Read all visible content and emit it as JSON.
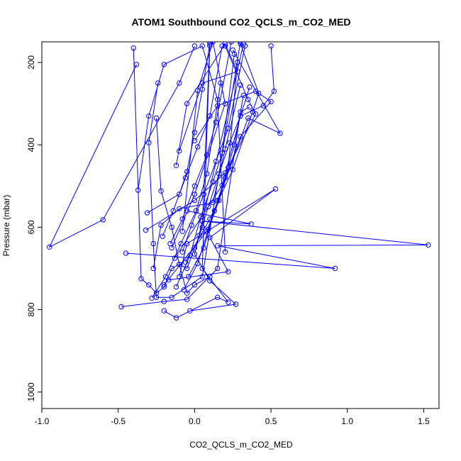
{
  "chart_data": {
    "type": "line",
    "title": "ATOM1 Southbound CO2_QCLS_m_CO2_MED",
    "xlabel": "CO2_QCLS_m_CO2_MED",
    "ylabel": "Pressure (mbar)",
    "xlim": [
      -1.0,
      1.6
    ],
    "ylim": [
      150,
      1040
    ],
    "y_reversed": true,
    "xticks": [
      -1.0,
      -0.5,
      0.0,
      0.5,
      1.0,
      1.5
    ],
    "xtick_labels": [
      "-1.0",
      "-0.5",
      "0.0",
      "0.5",
      "1.0",
      "1.5"
    ],
    "yticks": [
      200,
      400,
      600,
      800,
      1000
    ],
    "ytick_labels": [
      "200",
      "400",
      "600",
      "800",
      "1000"
    ],
    "grid": false,
    "series_color": "#0000ff",
    "marker": "open-circle",
    "series": [
      {
        "points": [
          [
            -0.4,
            165
          ],
          [
            -0.35,
            725
          ],
          [
            -0.3,
            740
          ],
          [
            -0.25,
            760
          ],
          [
            -0.2,
            745
          ],
          [
            -0.15,
            700
          ],
          [
            -0.1,
            690
          ],
          [
            -0.05,
            700
          ],
          [
            0.0,
            650
          ],
          [
            0.05,
            600
          ],
          [
            0.1,
            150
          ]
        ]
      },
      {
        "points": [
          [
            -0.38,
            205
          ],
          [
            -0.95,
            648
          ],
          [
            -0.6,
            582
          ],
          [
            -0.1,
            250
          ],
          [
            0.0,
            160
          ]
        ]
      },
      {
        "points": [
          [
            -0.24,
            250
          ],
          [
            -0.3,
            395
          ],
          [
            -0.27,
            640
          ],
          [
            -0.25,
            770
          ],
          [
            -0.15,
            770
          ],
          [
            0.05,
            720
          ],
          [
            0.3,
            150
          ]
        ]
      },
      {
        "points": [
          [
            -0.25,
            335
          ],
          [
            -0.22,
            512
          ],
          [
            -0.15,
            600
          ],
          [
            -0.1,
            690
          ],
          [
            -0.05,
            760
          ],
          [
            0.0,
            740
          ],
          [
            0.1,
            720
          ]
        ]
      },
      {
        "points": [
          [
            -0.48,
            793
          ],
          [
            -0.2,
            780
          ],
          [
            -0.05,
            775
          ],
          [
            0.15,
            700
          ],
          [
            0.3,
            320
          ],
          [
            0.36,
            308
          ]
        ]
      },
      {
        "points": [
          [
            -0.2,
            803
          ],
          [
            -0.12,
            820
          ],
          [
            0.15,
            770
          ],
          [
            0.22,
            782
          ],
          [
            0.05,
            700
          ],
          [
            0.1,
            160
          ]
        ]
      },
      {
        "points": [
          [
            -0.03,
            803
          ],
          [
            0.27,
            787
          ],
          [
            0.1,
            730
          ],
          [
            0.0,
            665
          ],
          [
            0.05,
            585
          ],
          [
            0.32,
            155
          ]
        ]
      },
      {
        "points": [
          [
            -0.45,
            663
          ],
          [
            0.92,
            700
          ],
          [
            0.15,
            645
          ],
          [
            1.53,
            643
          ],
          [
            0.05,
            585
          ],
          [
            0.37,
            592
          ],
          [
            -0.05,
            560
          ]
        ]
      },
      {
        "points": [
          [
            -0.17,
            728
          ],
          [
            0.22,
            708
          ],
          [
            0.1,
            625
          ],
          [
            0.53,
            507
          ],
          [
            -0.05,
            640
          ],
          [
            -0.1,
            720
          ]
        ]
      },
      {
        "points": [
          [
            -0.37,
            510
          ],
          [
            -0.3,
            330
          ],
          [
            -0.2,
            205
          ],
          [
            0.05,
            160
          ],
          [
            0.15,
            290
          ],
          [
            0.2,
            660
          ]
        ]
      },
      {
        "points": [
          [
            -0.31,
            565
          ],
          [
            -0.1,
            520
          ],
          [
            -0.05,
            465
          ],
          [
            0.0,
            370
          ],
          [
            0.05,
            265
          ],
          [
            0.1,
            155
          ]
        ]
      },
      {
        "points": [
          [
            -0.32,
            607
          ],
          [
            0.0,
            535
          ],
          [
            0.2,
            468
          ],
          [
            0.4,
            325
          ],
          [
            0.35,
            290
          ],
          [
            0.2,
            160
          ]
        ]
      },
      {
        "points": [
          [
            -0.13,
            675
          ],
          [
            0.18,
            498
          ],
          [
            0.3,
            330
          ],
          [
            0.45,
            305
          ],
          [
            0.52,
            270
          ],
          [
            0.5,
            160
          ]
        ]
      },
      {
        "points": [
          [
            -0.06,
            685
          ],
          [
            0.1,
            580
          ],
          [
            0.25,
            460
          ],
          [
            0.38,
            320
          ],
          [
            0.42,
            275
          ],
          [
            0.3,
            155
          ]
        ]
      },
      {
        "points": [
          [
            -0.2,
            740
          ],
          [
            0.08,
            610
          ],
          [
            0.35,
            335
          ],
          [
            0.56,
            372
          ],
          [
            0.25,
            170
          ]
        ]
      },
      {
        "points": [
          [
            -0.08,
            610
          ],
          [
            0.02,
            268
          ],
          [
            0.12,
            150
          ],
          [
            0.2,
            300
          ],
          [
            0.0,
            520
          ],
          [
            -0.15,
            650
          ]
        ]
      },
      {
        "points": [
          [
            -0.1,
            415
          ],
          [
            0.05,
            250
          ],
          [
            0.28,
            222
          ],
          [
            0.2,
            155
          ],
          [
            -0.05,
            300
          ],
          [
            -0.12,
            450
          ]
        ]
      },
      {
        "points": [
          [
            0.0,
            390
          ],
          [
            0.15,
            305
          ],
          [
            0.4,
            270
          ],
          [
            0.5,
            295
          ],
          [
            0.3,
            380
          ],
          [
            0.15,
            535
          ]
        ]
      },
      {
        "points": [
          [
            -0.27,
            700
          ],
          [
            -0.22,
            595
          ],
          [
            -0.1,
            555
          ],
          [
            0.12,
            540
          ],
          [
            0.2,
            410
          ],
          [
            0.3,
            255
          ]
        ]
      },
      {
        "points": [
          [
            -0.08,
            660
          ],
          [
            -0.02,
            595
          ],
          [
            0.06,
            520
          ],
          [
            0.14,
            440
          ],
          [
            0.22,
            360
          ],
          [
            0.33,
            160
          ]
        ]
      },
      {
        "points": [
          [
            -0.16,
            640
          ],
          [
            -0.08,
            580
          ],
          [
            0.0,
            500
          ],
          [
            0.08,
            425
          ],
          [
            0.14,
            345
          ],
          [
            0.24,
            150
          ]
        ]
      },
      {
        "points": [
          [
            -0.12,
            745
          ],
          [
            -0.03,
            668
          ],
          [
            0.04,
            575
          ],
          [
            0.12,
            490
          ],
          [
            0.18,
            420
          ],
          [
            0.26,
            180
          ]
        ]
      },
      {
        "points": [
          [
            -0.28,
            772
          ],
          [
            -0.19,
            720
          ],
          [
            -0.09,
            640
          ],
          [
            0.01,
            560
          ],
          [
            0.08,
            470
          ],
          [
            0.17,
            250
          ]
        ]
      },
      {
        "points": [
          [
            0.03,
            620
          ],
          [
            0.09,
            550
          ],
          [
            0.16,
            470
          ],
          [
            0.23,
            395
          ],
          [
            0.3,
            330
          ],
          [
            0.36,
            260
          ]
        ]
      },
      {
        "points": [
          [
            -0.07,
            752
          ],
          [
            0.02,
            688
          ],
          [
            0.09,
            605
          ],
          [
            0.16,
            535
          ],
          [
            0.22,
            455
          ],
          [
            0.28,
            200
          ]
        ]
      },
      {
        "points": [
          [
            -0.21,
            622
          ],
          [
            -0.14,
            560
          ],
          [
            -0.06,
            480
          ],
          [
            0.02,
            405
          ],
          [
            0.1,
            330
          ],
          [
            0.18,
            160
          ]
        ]
      },
      {
        "points": [
          [
            -0.04,
            720
          ],
          [
            0.06,
            650
          ],
          [
            0.13,
            560
          ],
          [
            0.2,
            480
          ],
          [
            0.26,
            400
          ],
          [
            0.32,
            280
          ]
        ]
      }
    ]
  }
}
